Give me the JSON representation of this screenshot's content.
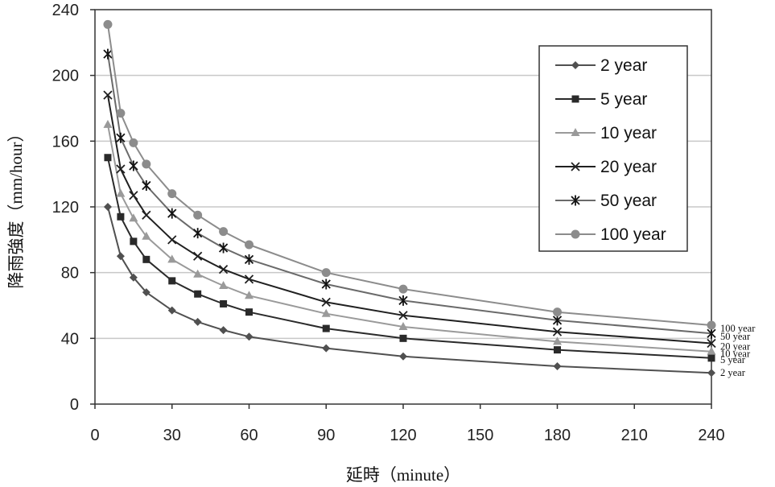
{
  "chart_data": {
    "type": "line",
    "xlabel": "延時（minute）",
    "ylabel": "降雨強度（mm/hour）",
    "xlim": [
      0,
      240
    ],
    "ylim": [
      0,
      240
    ],
    "x_ticks": [
      0,
      30,
      60,
      90,
      120,
      150,
      180,
      210,
      240
    ],
    "y_ticks": [
      0,
      40,
      80,
      120,
      160,
      200,
      240
    ],
    "grid": "horizontal",
    "legend_position": "top-right",
    "series": [
      {
        "name": "2 year",
        "end_label": "2 year",
        "color": "#505050",
        "marker": "diamond",
        "x": [
          5,
          10,
          15,
          20,
          30,
          40,
          50,
          60,
          90,
          120,
          180,
          240
        ],
        "y": [
          120,
          90,
          77,
          68,
          57,
          50,
          45,
          41,
          34,
          29,
          23,
          19
        ]
      },
      {
        "name": "5 year",
        "end_label": "5 year",
        "color": "#2a2a2a",
        "marker": "square",
        "x": [
          5,
          10,
          15,
          20,
          30,
          40,
          50,
          60,
          90,
          120,
          180,
          240
        ],
        "y": [
          150,
          114,
          99,
          88,
          75,
          67,
          61,
          56,
          46,
          40,
          33,
          28
        ]
      },
      {
        "name": "10 year",
        "end_label": "10 year",
        "color": "#9a9a9a",
        "marker": "triangle",
        "x": [
          5,
          10,
          15,
          20,
          30,
          40,
          50,
          60,
          90,
          120,
          180,
          240
        ],
        "y": [
          170,
          128,
          113,
          102,
          88,
          79,
          72,
          66,
          55,
          47,
          38,
          32
        ]
      },
      {
        "name": "20 year",
        "end_label": "20 year",
        "color": "#202020",
        "marker": "x",
        "x": [
          5,
          10,
          15,
          20,
          30,
          40,
          50,
          60,
          90,
          120,
          180,
          240
        ],
        "y": [
          188,
          143,
          127,
          115,
          100,
          90,
          82,
          76,
          62,
          54,
          44,
          37
        ]
      },
      {
        "name": "50 year",
        "end_label": "50 year",
        "color": "#6a6a6a",
        "marker": "star",
        "x": [
          5,
          10,
          15,
          20,
          30,
          40,
          50,
          60,
          90,
          120,
          180,
          240
        ],
        "y": [
          213,
          162,
          145,
          133,
          116,
          104,
          95,
          88,
          73,
          63,
          51,
          43
        ]
      },
      {
        "name": "100 year",
        "end_label": "100 year",
        "color": "#8c8c8c",
        "marker": "circle",
        "x": [
          5,
          10,
          15,
          20,
          30,
          40,
          50,
          60,
          90,
          120,
          180,
          240
        ],
        "y": [
          231,
          177,
          159,
          146,
          128,
          115,
          105,
          97,
          80,
          70,
          56,
          48
        ]
      }
    ]
  }
}
